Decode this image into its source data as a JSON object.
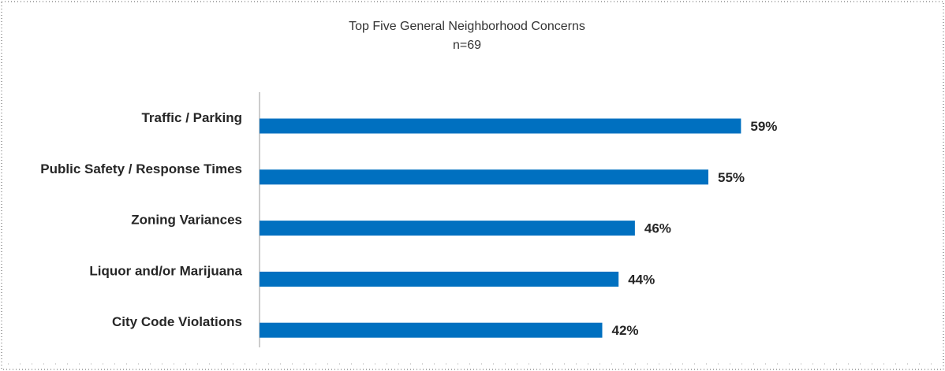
{
  "chart_data": {
    "type": "bar",
    "orientation": "horizontal",
    "title": "Top Five General Neighborhood Concerns",
    "subtitle": "n=69",
    "categories": [
      "Traffic / Parking",
      "Public Safety / Response Times",
      "Zoning Variances",
      "Liquor and/or Marijuana",
      "City Code Violations"
    ],
    "values": [
      59,
      55,
      46,
      44,
      42
    ],
    "value_labels": [
      "59%",
      "55%",
      "46%",
      "44%",
      "42%"
    ],
    "unit": "%",
    "xlim": [
      0,
      84
    ],
    "grid": false,
    "legend": "none",
    "bar_color": "#0070C0"
  }
}
